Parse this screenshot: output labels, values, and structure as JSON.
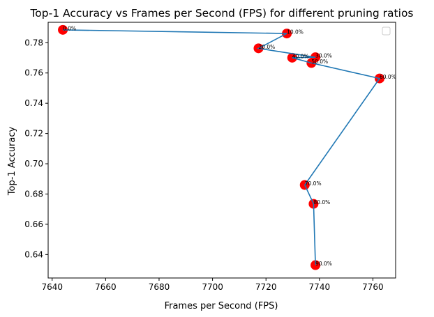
{
  "chart_data": {
    "type": "scatter",
    "title": "Top-1 Accuracy vs Frames per Second (FPS) for different pruning ratios",
    "xlabel": "Frames per Second (FPS)",
    "ylabel": "Top-1 Accuracy",
    "xlim": [
      7638.5,
      7768.5
    ],
    "ylim": [
      0.6245,
      0.7935
    ],
    "x_ticks": [
      7640,
      7660,
      7680,
      7700,
      7720,
      7740,
      7760
    ],
    "x_tick_labels": [
      "7640",
      "7660",
      "7680",
      "7700",
      "7720",
      "7740",
      "7760"
    ],
    "y_ticks": [
      0.64,
      0.66,
      0.68,
      0.7,
      0.72,
      0.74,
      0.76,
      0.78
    ],
    "y_tick_labels": [
      "0.64",
      "0.66",
      "0.68",
      "0.70",
      "0.72",
      "0.74",
      "0.76",
      "0.78"
    ],
    "grid": false,
    "legend": "top-right (empty)",
    "series": [
      {
        "line_color": "#1f77b4",
        "marker_color": "#ff0000",
        "points": [
          {
            "label": "0.0%",
            "x": 7644.0,
            "y": 0.7885
          },
          {
            "label": "10.0%",
            "x": 7727.8,
            "y": 0.7861
          },
          {
            "label": "20.0%",
            "x": 7717.2,
            "y": 0.7763
          },
          {
            "label": "30.0%",
            "x": 7738.5,
            "y": 0.7704
          },
          {
            "label": "40.0%",
            "x": 7729.8,
            "y": 0.7701
          },
          {
            "label": "50.0%",
            "x": 7737.0,
            "y": 0.7666
          },
          {
            "label": "60.0%",
            "x": 7762.5,
            "y": 0.7564
          },
          {
            "label": "70.0%",
            "x": 7734.5,
            "y": 0.686
          },
          {
            "label": "80.0%",
            "x": 7737.8,
            "y": 0.6735
          },
          {
            "label": "90.0%",
            "x": 7738.5,
            "y": 0.633
          }
        ]
      }
    ]
  }
}
